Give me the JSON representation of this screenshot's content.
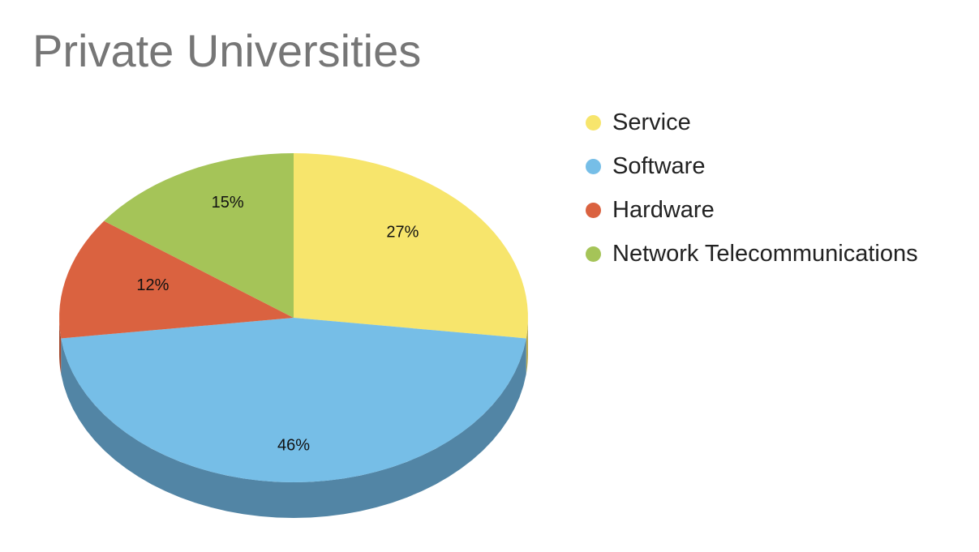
{
  "chart_data": {
    "type": "pie",
    "title": "Private Universities",
    "slices": [
      {
        "label": "Service",
        "value": 27,
        "display": "27%",
        "color": "#F7E56C",
        "side_color": "#B9AB51"
      },
      {
        "label": "Software",
        "value": 46,
        "display": "46%",
        "color": "#76BEE7",
        "side_color": "#5285A5"
      },
      {
        "label": "Hardware",
        "value": 12,
        "display": "12%",
        "color": "#DA6240",
        "side_color": "#A34A30"
      },
      {
        "label": "Network Telecommunications",
        "value": 15,
        "display": "15%",
        "color": "#A5C458",
        "side_color": "#7C9342"
      }
    ],
    "start": "12 o'clock",
    "direction": "clockwise",
    "style": "3D",
    "legend_position": "right"
  }
}
